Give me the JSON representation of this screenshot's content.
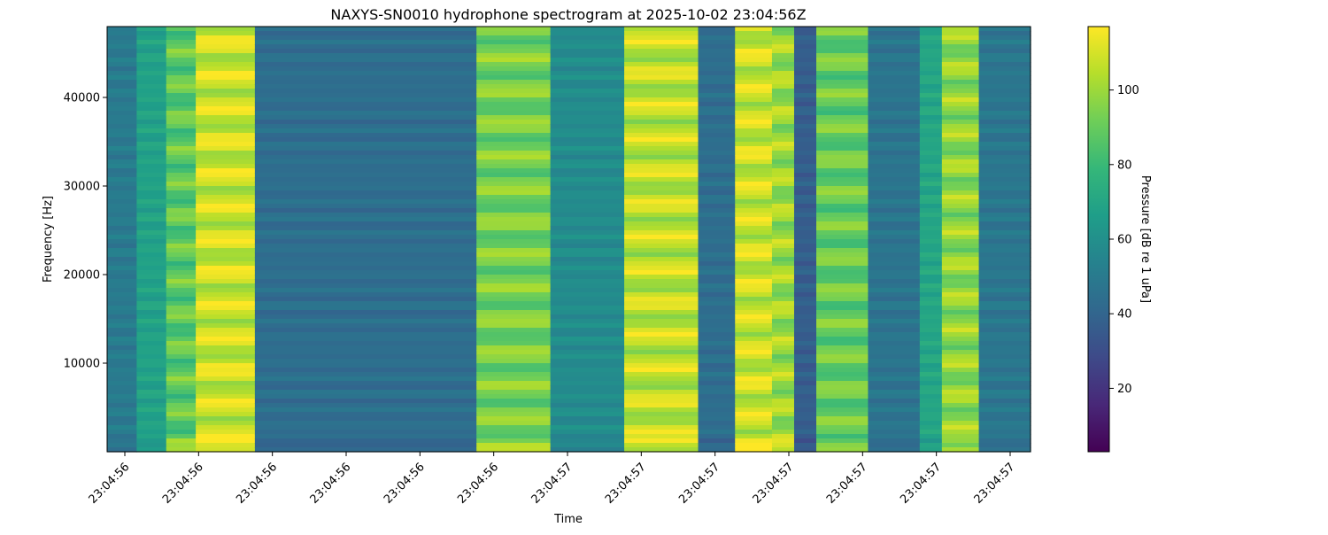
{
  "chart_data": {
    "type": "heatmap",
    "title": "NAXYS-SN0010 hydrophone spectrogram at 2025-10-02 23:04:56Z",
    "xlabel": "Time",
    "ylabel": "Frequency [Hz]",
    "colorbar_label": "Pressure [dB re 1 uPa]",
    "colormap": "viridis",
    "colormap_stops": [
      "#440154",
      "#482878",
      "#3e4a89",
      "#31688e",
      "#26828e",
      "#1f9e89",
      "#35b779",
      "#6ece58",
      "#b5de2b",
      "#fde725"
    ],
    "grid": false,
    "ylim": [
      0,
      48000
    ],
    "clim": [
      3,
      117
    ],
    "y_ticks": [
      10000,
      20000,
      30000,
      40000
    ],
    "y_tick_labels": [
      "10000",
      "20000",
      "30000",
      "40000"
    ],
    "x_tick_labels": [
      "23:04:56",
      "23:04:56",
      "23:04:56",
      "23:04:56",
      "23:04:56",
      "23:04:56",
      "23:04:57",
      "23:04:57",
      "23:04:57",
      "23:04:57",
      "23:04:57",
      "23:04:57",
      "23:04:57"
    ],
    "colorbar_ticks": [
      20,
      40,
      60,
      80,
      100
    ],
    "colorbar_tick_labels": [
      "20",
      "40",
      "60",
      "80",
      "100"
    ],
    "time_segments": [
      {
        "start": 0.0,
        "end": 0.04,
        "level_db": 50
      },
      {
        "start": 0.04,
        "end": 0.08,
        "level_db": 68
      },
      {
        "start": 0.08,
        "end": 0.12,
        "level_db": 88
      },
      {
        "start": 0.12,
        "end": 0.2,
        "level_db": 108
      },
      {
        "start": 0.2,
        "end": 0.5,
        "level_db": 44
      },
      {
        "start": 0.5,
        "end": 0.6,
        "level_db": 93
      },
      {
        "start": 0.6,
        "end": 0.7,
        "level_db": 58
      },
      {
        "start": 0.7,
        "end": 0.8,
        "level_db": 106
      },
      {
        "start": 0.8,
        "end": 0.85,
        "level_db": 44
      },
      {
        "start": 0.85,
        "end": 0.9,
        "level_db": 108
      },
      {
        "start": 0.9,
        "end": 0.93,
        "level_db": 100
      },
      {
        "start": 0.93,
        "end": 0.96,
        "level_db": 37
      },
      {
        "start": 0.96,
        "end": 1.03,
        "level_db": 90
      },
      {
        "start": 1.03,
        "end": 1.1,
        "level_db": 47
      },
      {
        "start": 1.1,
        "end": 1.13,
        "level_db": 70
      },
      {
        "start": 1.13,
        "end": 1.18,
        "level_db": 98
      },
      {
        "start": 1.18,
        "end": 1.25,
        "level_db": 48
      }
    ]
  }
}
